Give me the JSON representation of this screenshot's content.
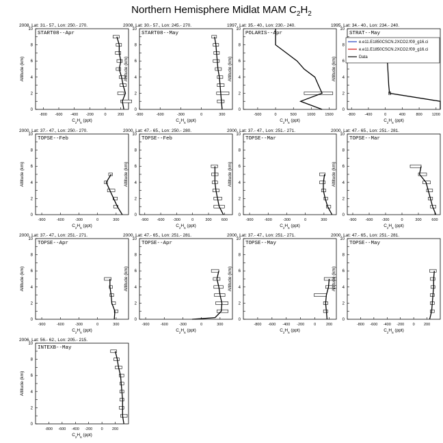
{
  "title": {
    "main": "Northern Hemisphere Midlat MAM C",
    "sub1": "2",
    "mid": "H",
    "sub2": "2"
  },
  "ylabel": "Altitude (km)",
  "xlabel": {
    "main": "C",
    "sub1": "2",
    "mid": "H",
    "sub2": "6",
    "tail": " (ppt)"
  },
  "legend": {
    "entries": [
      {
        "label": "e.e11.E1850CSCN.2XCO2.f09_g16.ci",
        "color": "#1f3fbf"
      },
      {
        "label": "e.e11.E1850CSCN.2XCO2.f09_g16.ci",
        "color": "#d01010"
      },
      {
        "label": "Data",
        "color": "#000000"
      }
    ]
  },
  "chart_data": [
    {
      "type": "line",
      "header": "2008, Lat: 31.- 57., Lon: 250.- 270.",
      "label": "START08--Apr",
      "xlim": [
        -900,
        300
      ],
      "ylim": [
        0,
        10
      ],
      "xticks": [
        -800,
        -600,
        -400,
        -200,
        0,
        200
      ],
      "profile": [
        [
          240,
          0
        ],
        [
          220,
          1
        ],
        [
          260,
          2
        ],
        [
          230,
          3
        ],
        [
          210,
          4
        ],
        [
          180,
          5
        ],
        [
          200,
          6
        ],
        [
          180,
          7
        ],
        [
          180,
          8
        ],
        [
          150,
          9
        ]
      ],
      "boxes": [
        [
          200,
          340,
          1
        ],
        [
          160,
          240,
          2
        ],
        [
          190,
          270,
          3
        ],
        [
          180,
          260,
          4
        ],
        [
          140,
          200,
          5
        ],
        [
          150,
          220,
          6
        ],
        [
          130,
          200,
          7
        ],
        [
          140,
          210,
          8
        ],
        [
          100,
          180,
          9
        ]
      ]
    },
    {
      "type": "line",
      "header": "2008, Lat: 30.- 57., Lon: 245.- 270.",
      "label": "START08--May",
      "xlim": [
        -900,
        450
      ],
      "ylim": [
        0,
        10
      ],
      "xticks": [
        -900,
        -600,
        -300,
        0,
        300
      ],
      "profile": [
        [
          300,
          0
        ],
        [
          290,
          1
        ],
        [
          280,
          2
        ],
        [
          270,
          3
        ],
        [
          260,
          4
        ],
        [
          240,
          5
        ],
        [
          230,
          6
        ],
        [
          220,
          7
        ],
        [
          210,
          8
        ],
        [
          190,
          9
        ]
      ],
      "boxes": [
        [
          230,
          330,
          1
        ],
        [
          220,
          400,
          2
        ],
        [
          230,
          330,
          3
        ],
        [
          230,
          310,
          4
        ],
        [
          200,
          290,
          5
        ],
        [
          170,
          260,
          6
        ],
        [
          180,
          260,
          7
        ],
        [
          170,
          250,
          8
        ],
        [
          150,
          220,
          9
        ]
      ]
    },
    {
      "type": "line",
      "header": "1997, Lat: 35.- 40., Lon: 230.- 240.",
      "label": "POLARIS--Apr",
      "xlim": [
        -900,
        1700
      ],
      "ylim": [
        0,
        10
      ],
      "xticks": [
        -500,
        0,
        500,
        1000,
        1500
      ],
      "profile": [
        [
          1300,
          0
        ],
        [
          700,
          1
        ],
        [
          1300,
          2
        ],
        [
          1200,
          3
        ],
        [
          1100,
          4
        ],
        [
          800,
          5
        ],
        [
          600,
          6
        ],
        [
          300,
          7
        ],
        [
          0,
          8
        ],
        [
          0,
          9
        ],
        [
          0,
          10
        ]
      ],
      "boxes": [
        [
          800,
          1600,
          2
        ]
      ]
    },
    {
      "type": "line",
      "header": "1995, Lat: 34.- 40., Lon: 234.- 240.",
      "label": "STRAT--May",
      "xlim": [
        -900,
        1300
      ],
      "ylim": [
        0,
        10
      ],
      "xticks": [
        -800,
        -400,
        0,
        400,
        800,
        1200
      ],
      "profile": [
        [
          1300,
          0
        ],
        [
          1300,
          1
        ],
        [
          100,
          2
        ],
        [
          80,
          3
        ],
        [
          70,
          4
        ],
        [
          60,
          5
        ],
        [
          50,
          6
        ],
        [
          40,
          7
        ],
        [
          30,
          8
        ]
      ],
      "boxes": [
        [
          80,
          130,
          2
        ]
      ]
    },
    {
      "type": "line",
      "header": "2000, Lat: 37.- 47., Lon: 250.- 270.",
      "label": "TOPSE--Feb",
      "xlim": [
        -1000,
        500
      ],
      "ylim": [
        0,
        10
      ],
      "xticks": [
        -900,
        -600,
        -300,
        0,
        300
      ],
      "profile": [
        [
          400,
          0
        ],
        [
          320,
          1
        ],
        [
          260,
          2
        ],
        [
          200,
          3
        ],
        [
          140,
          4
        ],
        [
          220,
          5
        ]
      ],
      "boxes": [
        [
          260,
          330,
          1
        ],
        [
          250,
          320,
          2
        ],
        [
          160,
          280,
          3
        ],
        [
          110,
          160,
          4
        ],
        [
          180,
          240,
          5
        ]
      ]
    },
    {
      "type": "line",
      "header": "2000, Lat: 47.- 65., Lon: 250.- 280.",
      "label": "TOPSE--Feb",
      "xlim": [
        -1000,
        750
      ],
      "ylim": [
        0,
        10
      ],
      "xticks": [
        -900,
        -600,
        -300,
        0,
        300,
        600
      ],
      "profile": [
        [
          580,
          0
        ],
        [
          500,
          1
        ],
        [
          470,
          2
        ],
        [
          440,
          3
        ],
        [
          420,
          4
        ],
        [
          420,
          5
        ],
        [
          420,
          6
        ]
      ],
      "boxes": [
        [
          400,
          600,
          1
        ],
        [
          400,
          550,
          2
        ],
        [
          380,
          500,
          3
        ],
        [
          370,
          470,
          4
        ],
        [
          360,
          480,
          5
        ],
        [
          350,
          470,
          6
        ]
      ]
    },
    {
      "type": "line",
      "header": "2000, Lat: 37.- 47., Lon: 251.- 271.",
      "label": "TOPSE--Mar",
      "xlim": [
        -1000,
        500
      ],
      "ylim": [
        0,
        10
      ],
      "xticks": [
        -900,
        -600,
        -300,
        0,
        300
      ],
      "profile": [
        [
          430,
          0
        ],
        [
          360,
          1
        ],
        [
          320,
          2
        ],
        [
          290,
          3
        ],
        [
          290,
          4
        ],
        [
          310,
          5
        ]
      ],
      "boxes": [
        [
          340,
          410,
          1
        ],
        [
          300,
          360,
          2
        ],
        [
          260,
          330,
          3
        ],
        [
          230,
          320,
          4
        ],
        [
          230,
          320,
          5
        ]
      ]
    },
    {
      "type": "line",
      "header": "2000, Lat: 47.- 65., Lon: 251.- 281.",
      "label": "TOPSE--Mar",
      "xlim": [
        -1000,
        700
      ],
      "ylim": [
        0,
        10
      ],
      "xticks": [
        -900,
        -600,
        -300,
        0,
        300,
        600
      ],
      "profile": [
        [
          620,
          0
        ],
        [
          560,
          1
        ],
        [
          520,
          2
        ],
        [
          480,
          3
        ],
        [
          440,
          4
        ],
        [
          320,
          5
        ],
        [
          350,
          6
        ]
      ],
      "boxes": [
        [
          520,
          620,
          1
        ],
        [
          480,
          560,
          2
        ],
        [
          450,
          560,
          3
        ],
        [
          380,
          520,
          4
        ],
        [
          300,
          450,
          5
        ],
        [
          150,
          350,
          6
        ]
      ]
    },
    {
      "type": "line",
      "header": "2000, Lat: 37.- 47., Lon: 251.- 271.",
      "label": "TOPSE--Apr",
      "xlim": [
        -1000,
        500
      ],
      "ylim": [
        0,
        10
      ],
      "xticks": [
        -900,
        -600,
        -300,
        0,
        300
      ],
      "profile": [
        [
          270,
          0
        ],
        [
          280,
          1
        ],
        [
          230,
          2
        ],
        [
          220,
          3
        ],
        [
          200,
          4
        ],
        [
          200,
          5
        ]
      ],
      "boxes": [
        [
          270,
          330,
          1
        ],
        [
          230,
          290,
          2
        ],
        [
          200,
          260,
          3
        ],
        [
          190,
          240,
          4
        ],
        [
          110,
          220,
          5
        ]
      ]
    },
    {
      "type": "line",
      "header": "2000, Lat: 47.- 65., Lon: 251.- 281.",
      "label": "TOPSE--Apr",
      "xlim": [
        -1000,
        500
      ],
      "ylim": [
        0,
        10
      ],
      "xticks": [
        -900,
        -600,
        -300,
        0,
        300
      ],
      "profile": [
        [
          -150,
          0
        ],
        [
          220,
          0.2
        ],
        [
          320,
          1
        ],
        [
          330,
          2
        ],
        [
          300,
          3
        ],
        [
          280,
          4
        ],
        [
          250,
          5
        ],
        [
          280,
          6
        ]
      ],
      "boxes": [
        [
          250,
          430,
          1
        ],
        [
          230,
          430,
          2
        ],
        [
          210,
          380,
          3
        ],
        [
          200,
          350,
          4
        ],
        [
          190,
          300,
          5
        ],
        [
          160,
          280,
          6
        ]
      ]
    },
    {
      "type": "line",
      "header": "2000, Lat: 37.- 47., Lon: 251.- 271.",
      "label": "TOPSE--May",
      "xlim": [
        -1000,
        300
      ],
      "ylim": [
        0,
        10
      ],
      "xticks": [
        -800,
        -600,
        -400,
        -200,
        0,
        200
      ],
      "profile": [
        [
          170,
          0
        ],
        [
          160,
          1
        ],
        [
          150,
          2
        ],
        [
          160,
          3
        ],
        [
          190,
          4
        ],
        [
          200,
          5
        ]
      ],
      "boxes": [
        [
          120,
          180,
          1
        ],
        [
          120,
          180,
          2
        ],
        [
          -10,
          160,
          3
        ],
        [
          150,
          300,
          4
        ],
        [
          130,
          300,
          5
        ]
      ]
    },
    {
      "type": "line",
      "header": "2000, Lat: 47.- 65., Lon: 251.- 281.",
      "label": "TOPSE--May",
      "xlim": [
        -1000,
        400
      ],
      "ylim": [
        0,
        10
      ],
      "xticks": [
        -800,
        -600,
        -400,
        -200,
        0,
        200
      ],
      "profile": [
        [
          240,
          0
        ],
        [
          270,
          1
        ],
        [
          280,
          2
        ],
        [
          290,
          3
        ],
        [
          300,
          4
        ],
        [
          300,
          5
        ],
        [
          310,
          6
        ]
      ],
      "boxes": [
        [
          250,
          310,
          1
        ],
        [
          250,
          310,
          2
        ],
        [
          250,
          310,
          3
        ],
        [
          260,
          320,
          4
        ],
        [
          250,
          320,
          5
        ],
        [
          240,
          340,
          6
        ]
      ]
    },
    {
      "type": "line",
      "header": "2006, Lat: 56.- 62., Lon: 205.- 215.",
      "label": "INTEXB--May",
      "xlim": [
        -1000,
        400
      ],
      "ylim": [
        0,
        10
      ],
      "xticks": [
        -800,
        -600,
        -400,
        -200,
        0,
        200
      ],
      "profile": [
        [
          330,
          0
        ],
        [
          310,
          1
        ],
        [
          310,
          2
        ],
        [
          310,
          3
        ],
        [
          300,
          4
        ],
        [
          290,
          5
        ],
        [
          280,
          6
        ],
        [
          250,
          7
        ],
        [
          230,
          8
        ],
        [
          200,
          9
        ]
      ],
      "boxes": [
        [
          280,
          380,
          1
        ],
        [
          260,
          330,
          2
        ],
        [
          270,
          330,
          3
        ],
        [
          270,
          330,
          4
        ],
        [
          270,
          330,
          5
        ],
        [
          260,
          330,
          6
        ],
        [
          200,
          300,
          7
        ],
        [
          180,
          260,
          8
        ],
        [
          130,
          220,
          9
        ]
      ]
    }
  ]
}
